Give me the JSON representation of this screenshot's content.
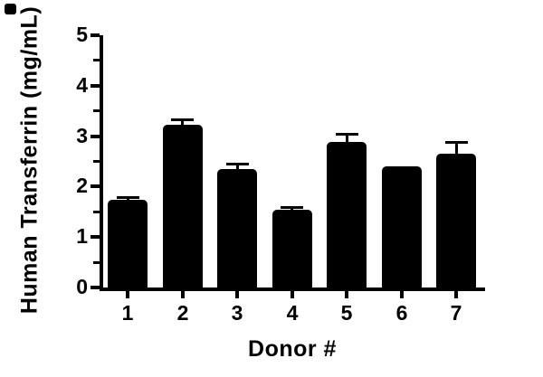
{
  "figure": {
    "background": "#ffffff",
    "foreground": "#000000"
  },
  "chart_data": {
    "type": "bar",
    "title": "",
    "xlabel": "Donor #",
    "ylabel": "Human Transferrin (mg/mL)",
    "categories": [
      "1",
      "2",
      "3",
      "4",
      "5",
      "6",
      "7"
    ],
    "values": [
      1.73,
      3.22,
      2.34,
      1.55,
      2.89,
      2.4,
      2.66
    ],
    "errors_up": [
      0.06,
      0.1,
      0.11,
      0.03,
      0.14,
      0,
      0.22
    ],
    "ylim": [
      0,
      5
    ],
    "yticks": [
      "0",
      "1",
      "2",
      "3",
      "4",
      "5"
    ],
    "ytick_step": 1,
    "yminor_step": 0.5,
    "bar_color": "#000000",
    "axis_color": "#000000",
    "grid": false,
    "legend": "none",
    "error_bar_style": "upward-cap"
  }
}
